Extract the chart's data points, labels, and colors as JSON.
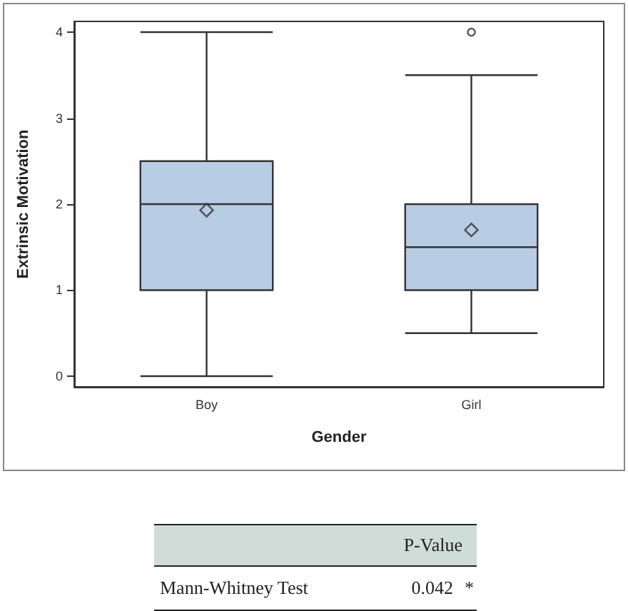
{
  "chart_data": {
    "type": "box",
    "xlabel": "Gender",
    "ylabel": "Extrinsic Motivation",
    "categories": [
      "Boy",
      "Girl"
    ],
    "color": "#b8cce4",
    "boxes": [
      {
        "low": 0,
        "q1": 1,
        "median": 2,
        "q3": 2.5,
        "high": 4,
        "mean": 1.93
      },
      {
        "low": 0.5,
        "q1": 1,
        "median": 1.5,
        "q3": 2,
        "high": 3.5,
        "mean": 1.7,
        "outliers": [
          4
        ]
      }
    ],
    "ylim": [
      -0.125,
      4.125
    ],
    "yticks": [
      0,
      1,
      2,
      3,
      4
    ],
    "annotations": [
      "P-Value",
      "Mann-Whitney Test",
      "0.042",
      "*"
    ]
  }
}
